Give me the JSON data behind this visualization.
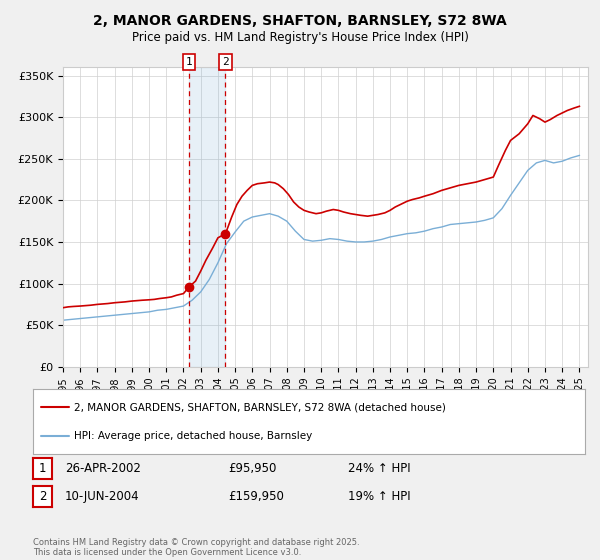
{
  "title": "2, MANOR GARDENS, SHAFTON, BARNSLEY, S72 8WA",
  "subtitle": "Price paid vs. HM Land Registry's House Price Index (HPI)",
  "property_label": "2, MANOR GARDENS, SHAFTON, BARNSLEY, S72 8WA (detached house)",
  "hpi_label": "HPI: Average price, detached house, Barnsley",
  "property_color": "#cc0000",
  "hpi_color": "#7aaed6",
  "background_color": "#f0f0f0",
  "plot_bg_color": "#ffffff",
  "ylim": [
    0,
    360000
  ],
  "yticks": [
    0,
    50000,
    100000,
    150000,
    200000,
    250000,
    300000,
    350000
  ],
  "ytick_labels": [
    "£0",
    "£50K",
    "£100K",
    "£150K",
    "£200K",
    "£250K",
    "£300K",
    "£350K"
  ],
  "sale1_date": 2002.32,
  "sale1_price": 95950,
  "sale1_label": "1",
  "sale1_text": "26-APR-2002",
  "sale1_price_text": "£95,950",
  "sale1_hpi_text": "24% ↑ HPI",
  "sale2_date": 2004.44,
  "sale2_price": 159950,
  "sale2_label": "2",
  "sale2_text": "10-JUN-2004",
  "sale2_price_text": "£159,950",
  "sale2_hpi_text": "19% ↑ HPI",
  "footer": "Contains HM Land Registry data © Crown copyright and database right 2025.\nThis data is licensed under the Open Government Licence v3.0.",
  "property_data": {
    "years": [
      1995.0,
      1995.3,
      1995.6,
      1996.0,
      1996.3,
      1996.6,
      1997.0,
      1997.3,
      1997.6,
      1998.0,
      1998.3,
      1998.6,
      1999.0,
      1999.3,
      1999.6,
      2000.0,
      2000.3,
      2000.6,
      2001.0,
      2001.3,
      2001.6,
      2002.0,
      2002.32,
      2002.7,
      2003.0,
      2003.3,
      2003.7,
      2004.0,
      2004.44,
      2004.8,
      2005.1,
      2005.4,
      2005.7,
      2006.0,
      2006.3,
      2006.7,
      2007.0,
      2007.3,
      2007.5,
      2007.8,
      2008.1,
      2008.4,
      2008.7,
      2009.0,
      2009.3,
      2009.7,
      2010.0,
      2010.3,
      2010.7,
      2011.0,
      2011.3,
      2011.7,
      2012.0,
      2012.3,
      2012.7,
      2013.0,
      2013.3,
      2013.7,
      2014.0,
      2014.3,
      2014.7,
      2015.0,
      2015.3,
      2015.7,
      2016.0,
      2016.5,
      2017.0,
      2017.5,
      2018.0,
      2018.5,
      2019.0,
      2019.5,
      2020.0,
      2020.3,
      2020.7,
      2021.0,
      2021.5,
      2022.0,
      2022.3,
      2022.7,
      2023.0,
      2023.3,
      2023.7,
      2024.0,
      2024.3,
      2024.7,
      2025.0
    ],
    "values": [
      71000,
      72000,
      72500,
      73000,
      73500,
      74000,
      75000,
      75500,
      76000,
      77000,
      77500,
      78000,
      79000,
      79500,
      80000,
      80500,
      81000,
      82000,
      83000,
      84000,
      86000,
      88000,
      95950,
      103000,
      115000,
      128000,
      143000,
      155000,
      159950,
      180000,
      195000,
      205000,
      212000,
      218000,
      220000,
      221000,
      222000,
      221000,
      219000,
      214000,
      207000,
      198000,
      192000,
      188000,
      186000,
      184000,
      185000,
      187000,
      189000,
      188000,
      186000,
      184000,
      183000,
      182000,
      181000,
      182000,
      183000,
      185000,
      188000,
      192000,
      196000,
      199000,
      201000,
      203000,
      205000,
      208000,
      212000,
      215000,
      218000,
      220000,
      222000,
      225000,
      228000,
      242000,
      260000,
      272000,
      280000,
      292000,
      302000,
      298000,
      294000,
      297000,
      302000,
      305000,
      308000,
      311000,
      313000
    ]
  },
  "hpi_data": {
    "years": [
      1995.0,
      1995.5,
      1996.0,
      1996.5,
      1997.0,
      1997.5,
      1998.0,
      1998.5,
      1999.0,
      1999.5,
      2000.0,
      2000.5,
      2001.0,
      2001.5,
      2002.0,
      2002.5,
      2003.0,
      2003.5,
      2004.0,
      2004.5,
      2005.0,
      2005.5,
      2006.0,
      2006.5,
      2007.0,
      2007.5,
      2008.0,
      2008.5,
      2009.0,
      2009.5,
      2010.0,
      2010.5,
      2011.0,
      2011.5,
      2012.0,
      2012.5,
      2013.0,
      2013.5,
      2014.0,
      2014.5,
      2015.0,
      2015.5,
      2016.0,
      2016.5,
      2017.0,
      2017.5,
      2018.0,
      2018.5,
      2019.0,
      2019.5,
      2020.0,
      2020.5,
      2021.0,
      2021.5,
      2022.0,
      2022.5,
      2023.0,
      2023.5,
      2024.0,
      2024.5,
      2025.0
    ],
    "values": [
      56000,
      57000,
      58000,
      59000,
      60000,
      61000,
      62000,
      63000,
      64000,
      65000,
      66000,
      68000,
      69000,
      71000,
      73000,
      80000,
      90000,
      105000,
      125000,
      148000,
      162000,
      175000,
      180000,
      182000,
      184000,
      181000,
      175000,
      163000,
      153000,
      151000,
      152000,
      154000,
      153000,
      151000,
      150000,
      150000,
      151000,
      153000,
      156000,
      158000,
      160000,
      161000,
      163000,
      166000,
      168000,
      171000,
      172000,
      173000,
      174000,
      176000,
      179000,
      190000,
      206000,
      221000,
      236000,
      245000,
      248000,
      245000,
      247000,
      251000,
      254000
    ]
  }
}
